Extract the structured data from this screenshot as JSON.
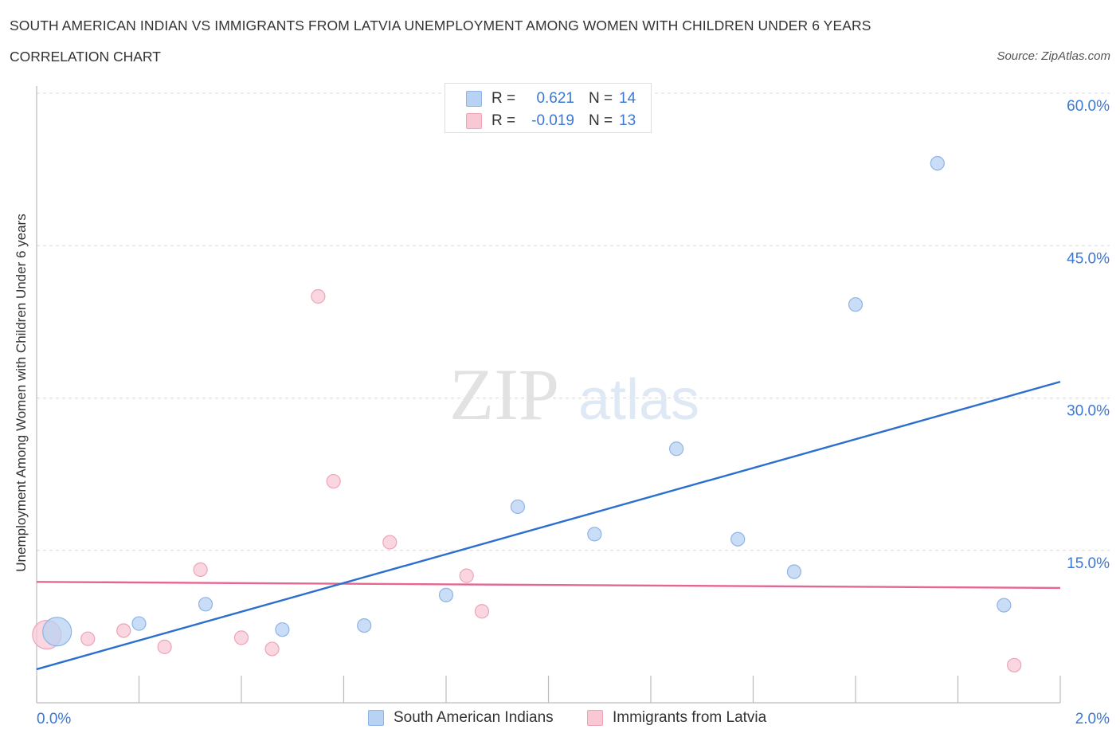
{
  "header": {
    "title": "SOUTH AMERICAN INDIAN VS IMMIGRANTS FROM LATVIA UNEMPLOYMENT AMONG WOMEN WITH CHILDREN UNDER 6 YEARS",
    "subtitle": "CORRELATION CHART",
    "source": "Source: ZipAtlas.com"
  },
  "watermark": {
    "zip": "ZIP",
    "atlas": "atlas"
  },
  "colors": {
    "blue_fill": "#b8d2f3",
    "blue_stroke": "#8fb4e6",
    "blue_line": "#2b6fcf",
    "pink_fill": "#f8c8d5",
    "pink_stroke": "#efa3b7",
    "pink_line": "#e3678f",
    "value_text": "#3a78d4",
    "grid": "#d9d9d9"
  },
  "legend_top": {
    "rows": [
      {
        "r_label": "R =",
        "r_value": "0.621",
        "n_label": "N =",
        "n_value": "14"
      },
      {
        "r_label": "R =",
        "r_value": "-0.019",
        "n_label": "N =",
        "n_value": "13"
      }
    ]
  },
  "legend_bottom": {
    "items": [
      {
        "label": "South American Indians"
      },
      {
        "label": "Immigrants from Latvia"
      }
    ]
  },
  "chart_data": {
    "type": "scatter",
    "title": "SOUTH AMERICAN INDIAN VS IMMIGRANTS FROM LATVIA UNEMPLOYMENT AMONG WOMEN WITH CHILDREN UNDER 6 YEARS",
    "subtitle": "CORRELATION CHART",
    "xlabel": "",
    "ylabel": "Unemployment Among Women with Children Under 6 years",
    "xlim": [
      0.0,
      2.0
    ],
    "ylim": [
      0.0,
      60.0
    ],
    "x_tick_labels": [
      "0.0%",
      "2.0%"
    ],
    "y_ticks": [
      15,
      30,
      45,
      60
    ],
    "y_tick_labels": [
      "15.0%",
      "30.0%",
      "45.0%",
      "60.0%"
    ],
    "grid": true,
    "legend_position": "bottom-center",
    "series": [
      {
        "name": "South American Indians",
        "R": 0.621,
        "N": 14,
        "points": [
          {
            "x": 0.04,
            "y": 7.0,
            "big": true
          },
          {
            "x": 0.2,
            "y": 7.8
          },
          {
            "x": 0.33,
            "y": 9.7
          },
          {
            "x": 0.48,
            "y": 7.2
          },
          {
            "x": 0.64,
            "y": 7.6
          },
          {
            "x": 0.8,
            "y": 10.6
          },
          {
            "x": 0.94,
            "y": 19.3
          },
          {
            "x": 1.09,
            "y": 16.6
          },
          {
            "x": 1.25,
            "y": 25.0
          },
          {
            "x": 1.37,
            "y": 16.1
          },
          {
            "x": 1.48,
            "y": 12.9
          },
          {
            "x": 1.6,
            "y": 39.2
          },
          {
            "x": 1.76,
            "y": 53.1
          },
          {
            "x": 1.89,
            "y": 9.6
          }
        ],
        "trend": {
          "x0": 0.0,
          "y0": 3.3,
          "x1": 2.0,
          "y1": 31.6
        }
      },
      {
        "name": "Immigrants from Latvia",
        "R": -0.019,
        "N": 13,
        "points": [
          {
            "x": 0.02,
            "y": 6.7,
            "big": true
          },
          {
            "x": 0.1,
            "y": 6.3
          },
          {
            "x": 0.17,
            "y": 7.1
          },
          {
            "x": 0.25,
            "y": 5.5
          },
          {
            "x": 0.32,
            "y": 13.1
          },
          {
            "x": 0.4,
            "y": 6.4
          },
          {
            "x": 0.46,
            "y": 5.3
          },
          {
            "x": 0.55,
            "y": 40.0
          },
          {
            "x": 0.58,
            "y": 21.8
          },
          {
            "x": 0.69,
            "y": 15.8
          },
          {
            "x": 0.84,
            "y": 12.5
          },
          {
            "x": 0.87,
            "y": 9.0
          },
          {
            "x": 1.91,
            "y": 3.7
          }
        ],
        "trend": {
          "x0": 0.0,
          "y0": 11.9,
          "x1": 2.0,
          "y1": 11.3
        }
      }
    ]
  }
}
